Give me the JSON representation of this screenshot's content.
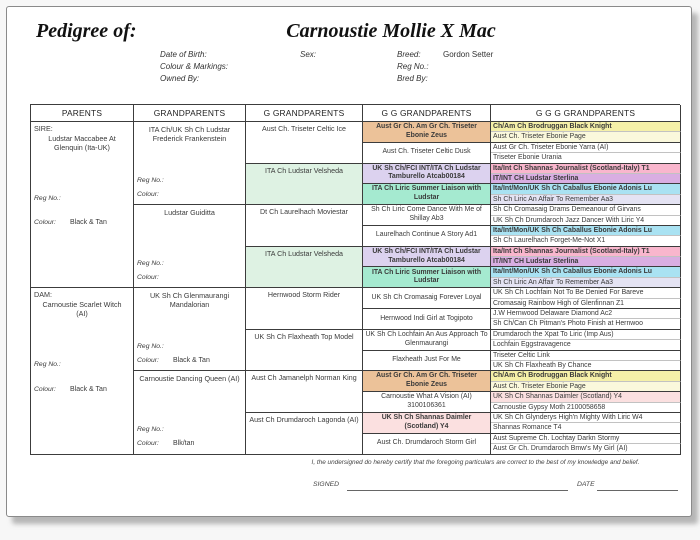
{
  "page": {
    "pedigree_of": "Pedigree of:",
    "title": "Carnoustie Mollie X Mac",
    "fields": {
      "date_of_birth_label": "Date of Birth:",
      "colour_markings_label": "Colour & Markings:",
      "owned_by_label": "Owned By:",
      "sex_label": "Sex:",
      "breed_label": "Breed:",
      "breed_value": "Gordon Setter",
      "reg_no_label": "Reg No.:",
      "bred_by_label": "Bred By:"
    }
  },
  "table": {
    "headers": [
      "PARENTS",
      "GRANDPARENTS",
      "G GRANDPARENTS",
      "G G GRANDPARENTS",
      "G G G GRANDPARENTS"
    ],
    "parents": [
      {
        "prefix": "SIRE:",
        "name": "Ludstar Maccabee At Glenquin (Ita-UK)",
        "reg_label": "Reg No.:",
        "colour_label": "Colour:",
        "colour_value": "Black & Tan"
      },
      {
        "prefix": "DAM:",
        "name": "Carnoustie Scarlet Witch (AI)",
        "reg_label": "Reg No.:",
        "colour_label": "Colour:",
        "colour_value": "Black & Tan"
      }
    ],
    "grandparents": [
      {
        "name": "ITA Ch/UK Sh Ch Ludstar Frederick Frankenstein",
        "reg_label": "Reg No.:",
        "colour_label": "Colour:",
        "colour_value": ""
      },
      {
        "name": "Ludstar Guiditta",
        "reg_label": "Reg No.:",
        "colour_label": "Colour:",
        "colour_value": ""
      },
      {
        "name": "UK Sh Ch Glenmaurangi Mandalorian",
        "reg_label": "Reg No.:",
        "colour_label": "Colour:",
        "colour_value": "Black & Tan"
      },
      {
        "name": "Carnoustie Dancing Queen (AI)",
        "reg_label": "Reg No.:",
        "colour_label": "Colour:",
        "colour_value": "Blk/tan"
      }
    ],
    "g_grandparents": [
      {
        "name": "Aust Ch. Triseter Celtic Ice",
        "bg": ""
      },
      {
        "name": "ITA Ch Ludstar Velsheda",
        "bg": "#def2e3"
      },
      {
        "name": "Dt Ch Laurelhach Moviestar",
        "bg": ""
      },
      {
        "name": "ITA Ch Ludstar Velsheda",
        "bg": "#def2e3"
      },
      {
        "name": "Hernwood Storm Rider",
        "bg": ""
      },
      {
        "name": "UK Sh Ch Flaxheath Top Model",
        "bg": ""
      },
      {
        "name": "Aust Ch Jamanelph Norman King",
        "bg": ""
      },
      {
        "name": "Aust Ch Drumdaroch Lagonda (AI)",
        "bg": ""
      }
    ],
    "gg_grandparents": [
      {
        "name": "Aust Gr Ch. Am Gr Ch. Triseter Ebonie Zeus",
        "bg": "#ecc299",
        "bold": true
      },
      {
        "name": "Aust Ch. Triseter Celtic Dusk",
        "bg": "",
        "bold": false
      },
      {
        "name": "UK Sh Ch/FCI INT/ITA Ch Ludstar Tamburello Atcab00184",
        "bg": "#dcd2ef",
        "bold": true
      },
      {
        "name": "ITA Ch Liric Summer Liaison with Ludstar",
        "bg": "#a5ead0",
        "bold": true
      },
      {
        "name": "Sh Ch Liric Come Dance With Me of Shillay Ab3",
        "bg": "",
        "bold": false
      },
      {
        "name": "Laurelhach Continue A Story Ad1",
        "bg": "",
        "bold": false
      },
      {
        "name": "UK Sh Ch/FCI INT/ITA Ch Ludstar Tamburello Atcab00184",
        "bg": "#dcd2ef",
        "bold": true
      },
      {
        "name": "ITA Ch Liric Summer Liaison with Ludstar",
        "bg": "#a5ead0",
        "bold": true
      },
      {
        "name": "UK Sh Ch Cromasaig Forever Loyal",
        "bg": "",
        "bold": false
      },
      {
        "name": "Hernwood Indi Girl at Togipoto",
        "bg": "",
        "bold": false
      },
      {
        "name": "UK Sh Ch Lochfain An Aus Approach To Glenmaurangi",
        "bg": "",
        "bold": false
      },
      {
        "name": "Flaxheath Just For Me",
        "bg": "",
        "bold": false
      },
      {
        "name": "Aust Gr Ch. Am Gr Ch. Triseter Ebonie Zeus",
        "bg": "#ecc299",
        "bold": true
      },
      {
        "name": "Carnoustie What A Vision (AI) 3100106361",
        "bg": "",
        "bold": false
      },
      {
        "name": "UK Sh Ch Shannas Daimler (Scotland) Y4",
        "bg": "#fbe0e0",
        "bold": true
      },
      {
        "name": "Aust Ch. Drumdaroch Storm Girl",
        "bg": "",
        "bold": false
      }
    ],
    "ggg_grandparents": [
      {
        "name": "Ch/Am Ch Brodruggan Black Knight",
        "bg": "#f5f0a8",
        "bold": true
      },
      {
        "name": "Aust Ch. Triseter Ebonie Page",
        "bg": "#faf8dc",
        "bold": false
      },
      {
        "name": "Aust Gr Ch. Triseter Ebonie Yarra (AI)",
        "bg": "",
        "bold": false
      },
      {
        "name": "Triseter Ebonie Urania",
        "bg": "",
        "bold": false
      },
      {
        "name": "Ita/Int Ch Shannas Journalist (Scotland-Italy) T1",
        "bg": "#f9b6cd",
        "bold": true
      },
      {
        "name": "IT/INT CH Ludstar Sterlina",
        "bg": "#d9aee2",
        "bold": true
      },
      {
        "name": "Ita/Int/Mon/UK Sh Ch Caballus Ebonie Adonis Lu",
        "bg": "#a9e2f2",
        "bold": true
      },
      {
        "name": "Sh Ch Liric An Affair To Remember Aa3",
        "bg": "#e4e3f3",
        "bold": false
      },
      {
        "name": "Sh Ch Cromasaig Drams Demeanour of Girvans",
        "bg": "",
        "bold": false
      },
      {
        "name": "UK Sh Ch Drumdaroch Jazz Dancer With Liric Y4",
        "bg": "",
        "bold": false
      },
      {
        "name": "Ita/Int/Mon/UK Sh Ch Caballus Ebonie Adonis Lu",
        "bg": "#a9e2f2",
        "bold": true
      },
      {
        "name": "Sh Ch Laurelhach Forget-Me-Not X1",
        "bg": "",
        "bold": false
      },
      {
        "name": "Ita/Int Ch Shannas Journalist (Scotland-Italy) T1",
        "bg": "#f9b6cd",
        "bold": true
      },
      {
        "name": "IT/INT CH Ludstar Sterlina",
        "bg": "#d9aee2",
        "bold": true
      },
      {
        "name": "Ita/Int/Mon/UK Sh Ch Caballus Ebonie Adonis Lu",
        "bg": "#a9e2f2",
        "bold": true
      },
      {
        "name": "Sh Ch Liric An Affair To Remember Aa3",
        "bg": "#e4e3f3",
        "bold": false
      },
      {
        "name": "UK Sh Ch Lochfain Not To Be Denied For Bareve",
        "bg": "",
        "bold": false
      },
      {
        "name": "Cromasaig Rainbow High of Glenfinnan Z1",
        "bg": "",
        "bold": false
      },
      {
        "name": "J.W Hernwood Delaware Diamond Ac2",
        "bg": "",
        "bold": false
      },
      {
        "name": "Sh Ch/Can Ch Pitman's Photo Finish at Hernwoo",
        "bg": "",
        "bold": false
      },
      {
        "name": "Drumdaroch the Xpat To Liric (Imp Aus)",
        "bg": "",
        "bold": false
      },
      {
        "name": "Lochfain Eggstravagence",
        "bg": "",
        "bold": false
      },
      {
        "name": "Triseter Celtic Link",
        "bg": "",
        "bold": false
      },
      {
        "name": "UK Sh Ch Flaxheath By Chance",
        "bg": "",
        "bold": false
      },
      {
        "name": "Ch/Am Ch Brodruggan Black Knight",
        "bg": "#f5f0a8",
        "bold": true
      },
      {
        "name": "Aust Ch. Triseter Ebonie Page",
        "bg": "#faf8dc",
        "bold": false
      },
      {
        "name": "UK Sh Ch Shannas Daimler (Scotland) Y4",
        "bg": "#fbe0e0",
        "bold": false
      },
      {
        "name": "Carnoustie Gypsy Moth 2100058658",
        "bg": "",
        "bold": false
      },
      {
        "name": "UK Sh Ch Glynderys High'n Mighty With Liric W4",
        "bg": "",
        "bold": false
      },
      {
        "name": "Shannas Romance T4",
        "bg": "",
        "bold": false
      },
      {
        "name": "Aust Supreme Ch. Lochtay Darkn Stormy",
        "bg": "",
        "bold": false
      },
      {
        "name": "Aust Gr Ch. Drumdaroch Bmw's My Girl (AI)",
        "bg": "",
        "bold": false
      }
    ]
  },
  "footer": {
    "certification": "I, the undersigned do hereby certify that the foregoing particulars are correct to the best of my knowledge and belief.",
    "signed_label": "SIGNED",
    "date_label": "DATE"
  }
}
